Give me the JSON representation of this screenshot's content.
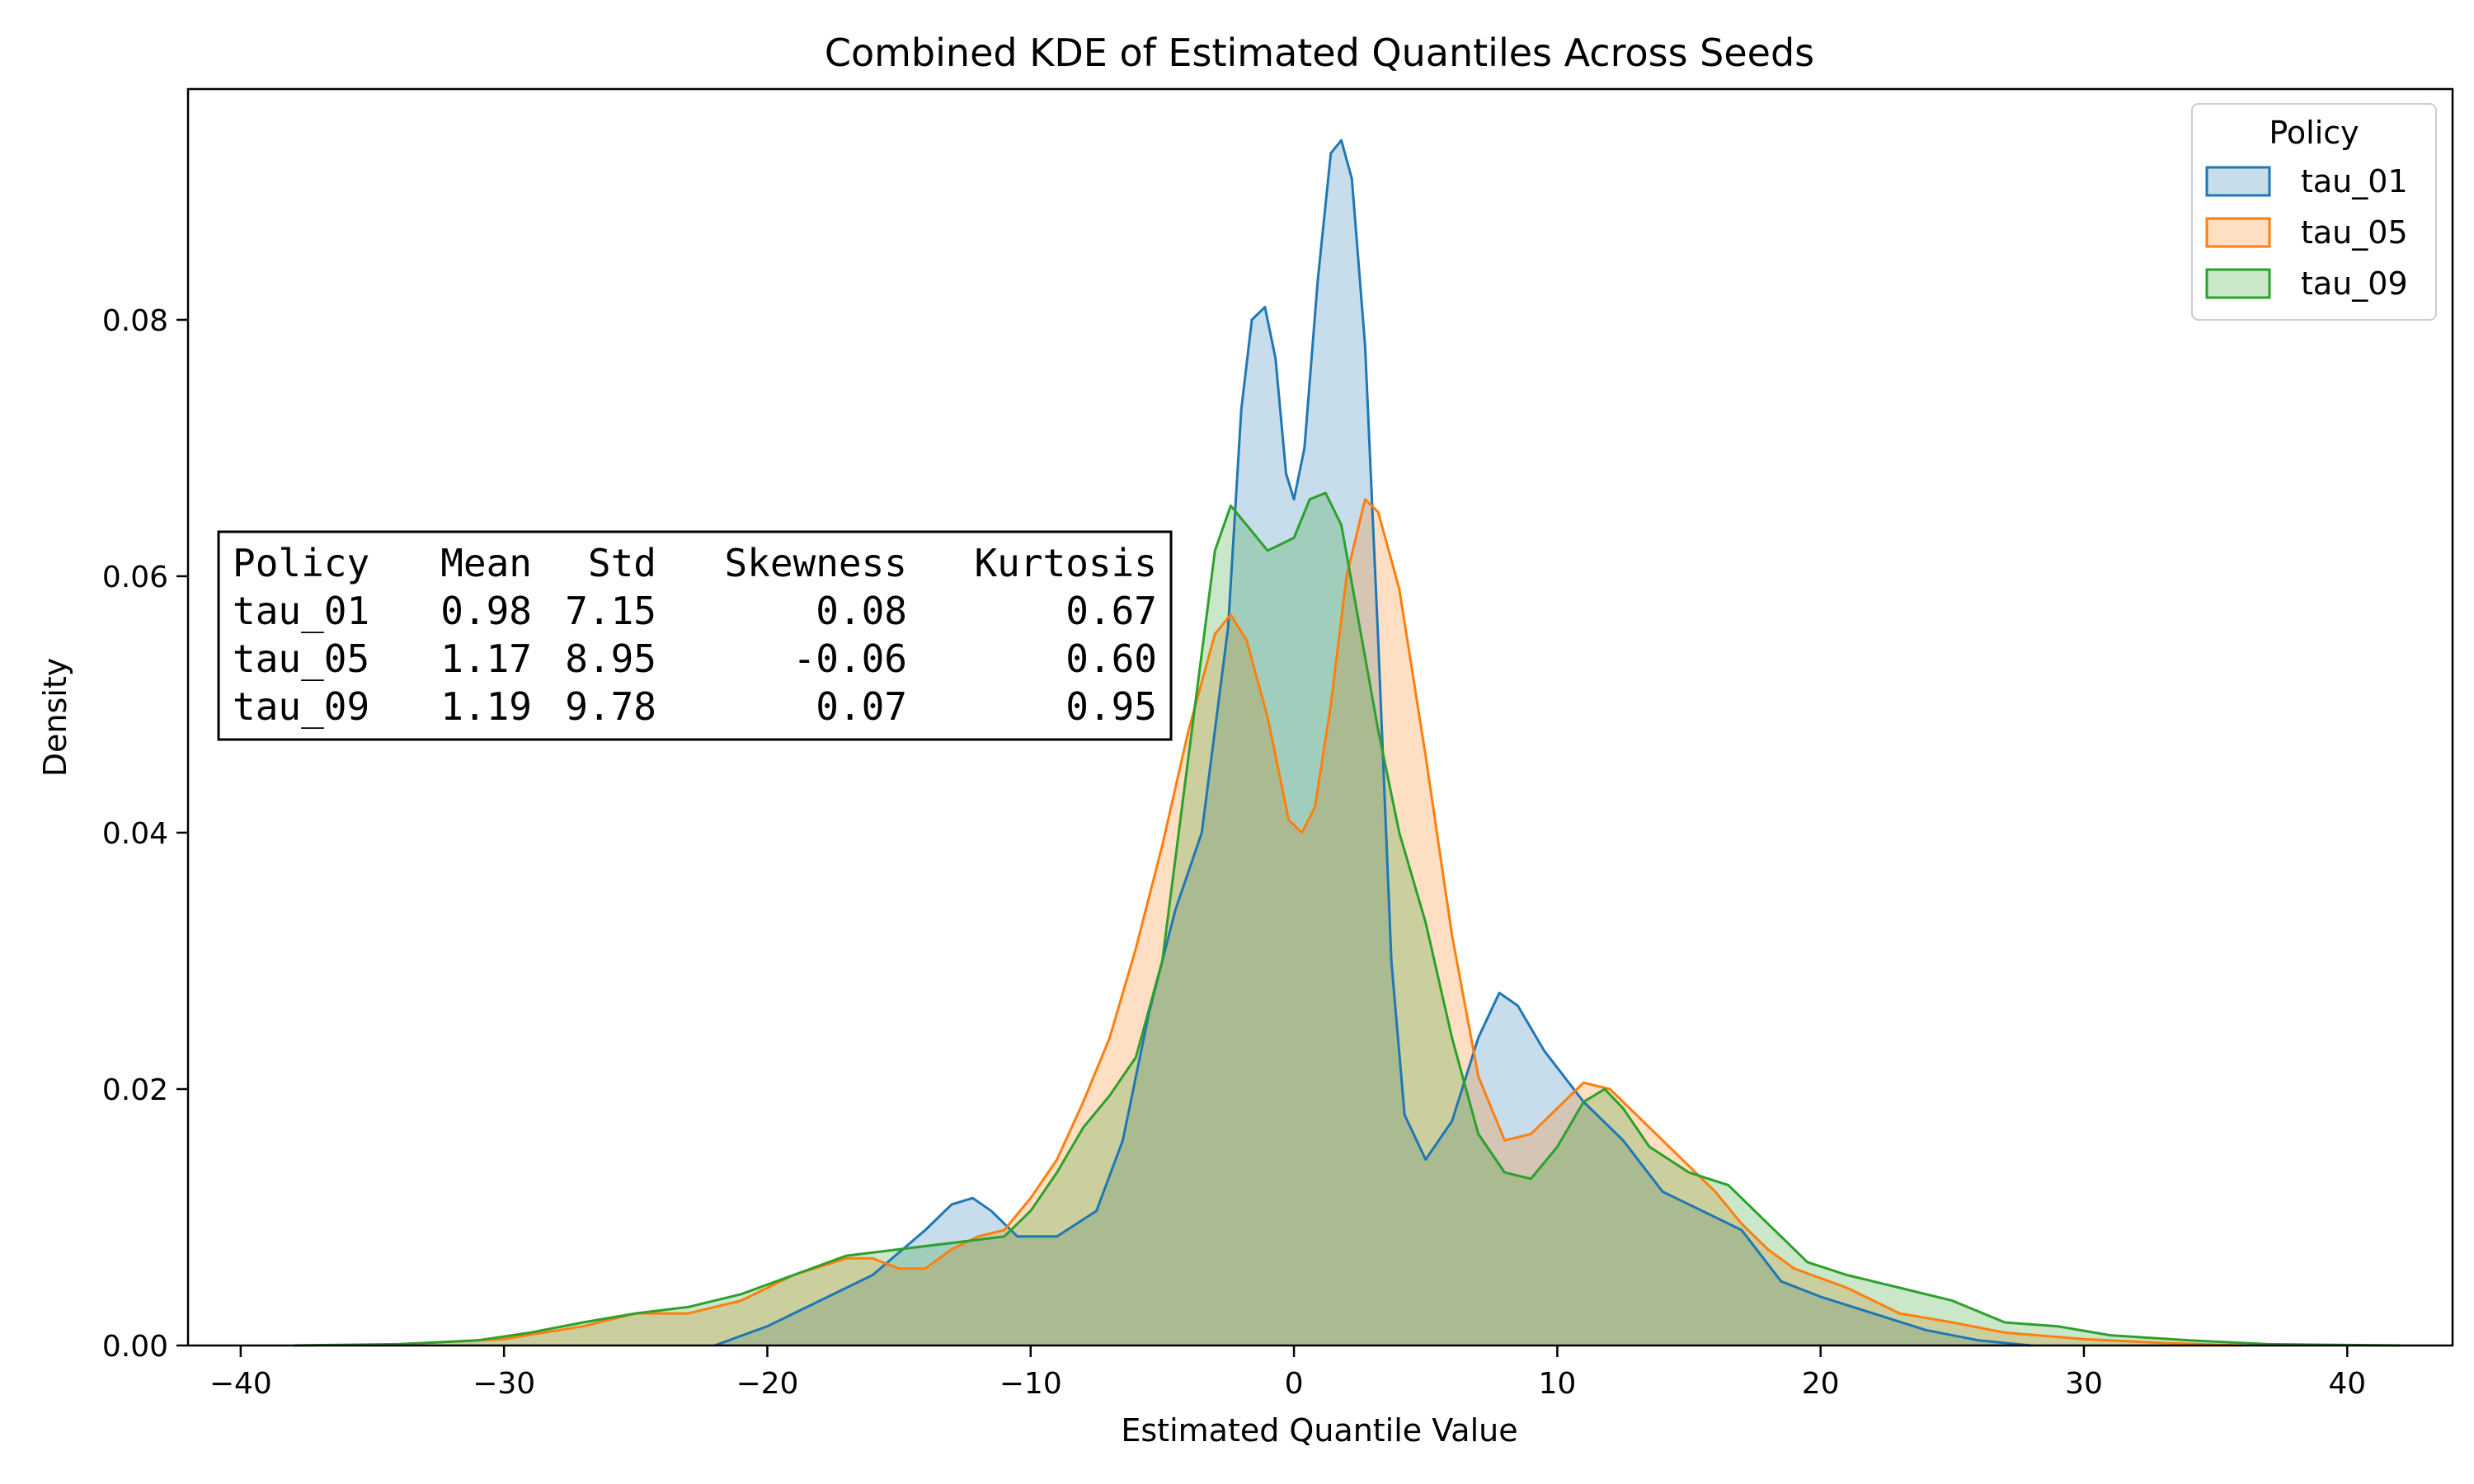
{
  "chart_data": {
    "type": "area",
    "title": "Combined KDE of Estimated Quantiles Across Seeds",
    "xlabel": "Estimated Quantile Value",
    "ylabel": "Density",
    "xlim": [
      -42,
      44
    ],
    "ylim": [
      0,
      0.098
    ],
    "xticks": [
      -40,
      -30,
      -20,
      -10,
      0,
      10,
      20,
      30,
      40
    ],
    "xtick_labels": [
      "−40",
      "−30",
      "−20",
      "−10",
      "0",
      "10",
      "20",
      "30",
      "40"
    ],
    "yticks": [
      0,
      0.02,
      0.04,
      0.06,
      0.08
    ],
    "ytick_labels": [
      "0.00",
      "0.02",
      "0.04",
      "0.06",
      "0.08"
    ],
    "grid": false,
    "legend": {
      "title": "Policy",
      "position": "top-right"
    },
    "series": [
      {
        "name": "tau_01",
        "color": "#1f77b4",
        "points": [
          [
            -22,
            0
          ],
          [
            -20,
            0.0015
          ],
          [
            -18,
            0.0035
          ],
          [
            -16,
            0.0055
          ],
          [
            -14,
            0.009
          ],
          [
            -13,
            0.011
          ],
          [
            -12.2,
            0.0115
          ],
          [
            -11.5,
            0.0105
          ],
          [
            -10.5,
            0.0085
          ],
          [
            -9,
            0.0085
          ],
          [
            -7.5,
            0.0105
          ],
          [
            -6.5,
            0.016
          ],
          [
            -5.5,
            0.026
          ],
          [
            -4.5,
            0.034
          ],
          [
            -3.5,
            0.04
          ],
          [
            -2.5,
            0.056
          ],
          [
            -2,
            0.073
          ],
          [
            -1.6,
            0.08
          ],
          [
            -1.1,
            0.081
          ],
          [
            -0.7,
            0.077
          ],
          [
            -0.3,
            0.068
          ],
          [
            0,
            0.066
          ],
          [
            0.4,
            0.07
          ],
          [
            0.9,
            0.083
          ],
          [
            1.4,
            0.093
          ],
          [
            1.8,
            0.094
          ],
          [
            2.2,
            0.091
          ],
          [
            2.7,
            0.078
          ],
          [
            3.2,
            0.055
          ],
          [
            3.7,
            0.03
          ],
          [
            4.2,
            0.018
          ],
          [
            5,
            0.0145
          ],
          [
            6,
            0.0175
          ],
          [
            7,
            0.024
          ],
          [
            7.8,
            0.0275
          ],
          [
            8.5,
            0.0265
          ],
          [
            9.5,
            0.023
          ],
          [
            11,
            0.019
          ],
          [
            12.5,
            0.016
          ],
          [
            14,
            0.012
          ],
          [
            15.5,
            0.0105
          ],
          [
            17,
            0.009
          ],
          [
            18.5,
            0.005
          ],
          [
            20,
            0.0038
          ],
          [
            22,
            0.0025
          ],
          [
            24,
            0.0012
          ],
          [
            26,
            0.0004
          ],
          [
            28,
            0
          ]
        ]
      },
      {
        "name": "tau_05",
        "color": "#ff7f0e",
        "points": [
          [
            -35,
            0
          ],
          [
            -30,
            0.0005
          ],
          [
            -27,
            0.0015
          ],
          [
            -25,
            0.0025
          ],
          [
            -23,
            0.0025
          ],
          [
            -21,
            0.0035
          ],
          [
            -19,
            0.0055
          ],
          [
            -17,
            0.0068
          ],
          [
            -16,
            0.0068
          ],
          [
            -15,
            0.006
          ],
          [
            -14,
            0.006
          ],
          [
            -13,
            0.0075
          ],
          [
            -12,
            0.0085
          ],
          [
            -11,
            0.009
          ],
          [
            -10,
            0.0115
          ],
          [
            -9,
            0.0145
          ],
          [
            -8,
            0.019
          ],
          [
            -7,
            0.024
          ],
          [
            -6,
            0.031
          ],
          [
            -5,
            0.039
          ],
          [
            -4,
            0.048
          ],
          [
            -3,
            0.0555
          ],
          [
            -2.4,
            0.057
          ],
          [
            -1.8,
            0.055
          ],
          [
            -1,
            0.049
          ],
          [
            -0.2,
            0.041
          ],
          [
            0.3,
            0.04
          ],
          [
            0.8,
            0.042
          ],
          [
            1.4,
            0.05
          ],
          [
            2,
            0.06
          ],
          [
            2.7,
            0.066
          ],
          [
            3.2,
            0.065
          ],
          [
            4,
            0.059
          ],
          [
            5,
            0.046
          ],
          [
            6,
            0.032
          ],
          [
            7,
            0.021
          ],
          [
            8,
            0.016
          ],
          [
            9,
            0.0165
          ],
          [
            10,
            0.0185
          ],
          [
            11,
            0.0205
          ],
          [
            12,
            0.02
          ],
          [
            13,
            0.018
          ],
          [
            14,
            0.016
          ],
          [
            15,
            0.014
          ],
          [
            16,
            0.012
          ],
          [
            17,
            0.0095
          ],
          [
            18,
            0.0075
          ],
          [
            19,
            0.006
          ],
          [
            21,
            0.0045
          ],
          [
            23,
            0.0025
          ],
          [
            25,
            0.0018
          ],
          [
            27,
            0.001
          ],
          [
            30,
            0.0005
          ],
          [
            33,
            0.0002
          ],
          [
            36,
            0
          ]
        ]
      },
      {
        "name": "tau_09",
        "color": "#2ca02c",
        "points": [
          [
            -38,
            0
          ],
          [
            -34,
            0.0001
          ],
          [
            -31,
            0.0004
          ],
          [
            -29,
            0.001
          ],
          [
            -27,
            0.0018
          ],
          [
            -25,
            0.0025
          ],
          [
            -23,
            0.003
          ],
          [
            -21,
            0.004
          ],
          [
            -19,
            0.0055
          ],
          [
            -17,
            0.007
          ],
          [
            -15,
            0.0075
          ],
          [
            -13,
            0.008
          ],
          [
            -11,
            0.0085
          ],
          [
            -10,
            0.0105
          ],
          [
            -9,
            0.0135
          ],
          [
            -8,
            0.017
          ],
          [
            -7,
            0.0195
          ],
          [
            -6,
            0.0225
          ],
          [
            -5,
            0.03
          ],
          [
            -4,
            0.046
          ],
          [
            -3,
            0.062
          ],
          [
            -2.4,
            0.0655
          ],
          [
            -1.8,
            0.064
          ],
          [
            -1,
            0.062
          ],
          [
            -0.5,
            0.0625
          ],
          [
            0,
            0.063
          ],
          [
            0.6,
            0.066
          ],
          [
            1.2,
            0.0665
          ],
          [
            1.8,
            0.064
          ],
          [
            2.5,
            0.056
          ],
          [
            3.2,
            0.048
          ],
          [
            4,
            0.04
          ],
          [
            5,
            0.033
          ],
          [
            6,
            0.024
          ],
          [
            7,
            0.0165
          ],
          [
            8,
            0.0135
          ],
          [
            9,
            0.013
          ],
          [
            10,
            0.0155
          ],
          [
            11,
            0.019
          ],
          [
            11.8,
            0.02
          ],
          [
            12.5,
            0.0185
          ],
          [
            13.5,
            0.0155
          ],
          [
            15,
            0.0135
          ],
          [
            16.5,
            0.0125
          ],
          [
            18,
            0.0095
          ],
          [
            19.5,
            0.0065
          ],
          [
            21,
            0.0055
          ],
          [
            23,
            0.0045
          ],
          [
            25,
            0.0035
          ],
          [
            27,
            0.0018
          ],
          [
            29,
            0.0015
          ],
          [
            31,
            0.0008
          ],
          [
            34,
            0.0004
          ],
          [
            37,
            0.0001
          ],
          [
            42,
            0
          ]
        ]
      }
    ],
    "stats_table": {
      "header": [
        "Policy",
        "Mean",
        "Std",
        "Skewness",
        "Kurtosis"
      ],
      "rows": [
        [
          "tau_01",
          "0.98",
          "7.15",
          "0.08",
          "0.67"
        ],
        [
          "tau_05",
          "1.17",
          "8.95",
          "-0.06",
          "0.60"
        ],
        [
          "tau_09",
          "1.19",
          "9.78",
          "0.07",
          "0.95"
        ]
      ]
    }
  }
}
